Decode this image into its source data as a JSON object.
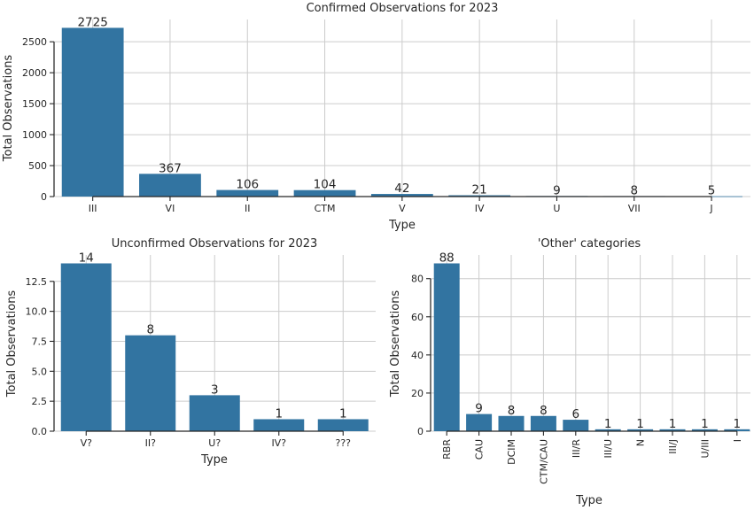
{
  "colors": {
    "bar": "#3274a1"
  },
  "chart_data": [
    {
      "type": "bar",
      "title": "Confirmed Observations for 2023",
      "xlabel": "Type",
      "ylabel": "Total Observations",
      "categories": [
        "III",
        "VI",
        "II",
        "CTM",
        "V",
        "IV",
        "U",
        "VII",
        "J"
      ],
      "values": [
        2725,
        367,
        106,
        104,
        42,
        21,
        9,
        8,
        5
      ],
      "data_labels": [
        "2725",
        "367",
        "106",
        "104",
        "42",
        "21",
        "9",
        "8",
        "5"
      ],
      "ylim": [
        0,
        2860
      ],
      "yticks": [
        0,
        500,
        1000,
        1500,
        2000,
        2500
      ],
      "ytick_labels": [
        "0",
        "500",
        "1000",
        "1500",
        "2000",
        "2500"
      ],
      "grid": true,
      "legend": "none"
    },
    {
      "type": "bar",
      "title": "Unconfirmed Observations for 2023",
      "xlabel": "Type",
      "ylabel": "Total Observations",
      "categories": [
        "V?",
        "II?",
        "U?",
        "IV?",
        "???"
      ],
      "values": [
        14,
        8,
        3,
        1,
        1
      ],
      "data_labels": [
        "14",
        "8",
        "3",
        "1",
        "1"
      ],
      "ylim": [
        0,
        14.7
      ],
      "yticks": [
        0,
        2.5,
        5,
        7.5,
        10,
        12.5
      ],
      "ytick_labels": [
        "0.0",
        "2.5",
        "5.0",
        "7.5",
        "10.0",
        "12.5"
      ],
      "grid": true,
      "legend": "none"
    },
    {
      "type": "bar",
      "title": "'Other' categories",
      "xlabel": "Type",
      "ylabel": "Total Observations",
      "categories": [
        "RBR",
        "CAU",
        "DCIM",
        "CTM/CAU",
        "III/R",
        "III/U",
        "N",
        "III/J",
        "U/III",
        "I"
      ],
      "values": [
        88,
        9,
        8,
        8,
        6,
        1,
        1,
        1,
        1,
        1
      ],
      "data_labels": [
        "88",
        "9",
        "8",
        "8",
        "6",
        "1",
        "1",
        "1",
        "1",
        "1"
      ],
      "ylim": [
        0,
        92.4
      ],
      "yticks": [
        0,
        20,
        40,
        60,
        80
      ],
      "ytick_labels": [
        "0",
        "20",
        "40",
        "60",
        "80"
      ],
      "xtick_rotation": 90,
      "grid": true,
      "legend": "none"
    }
  ]
}
